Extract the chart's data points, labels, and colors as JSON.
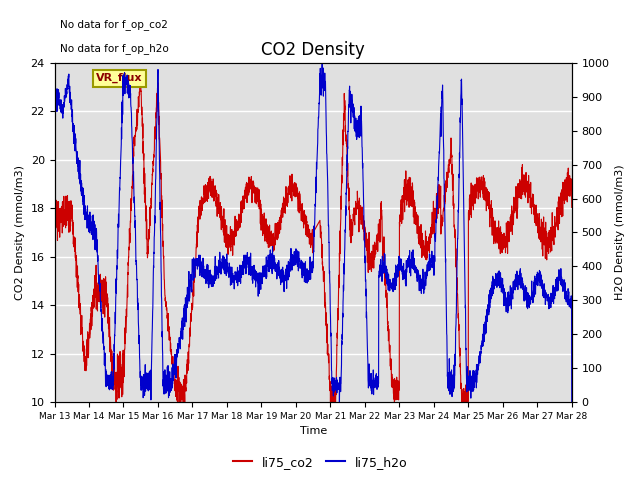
{
  "title": "CO2 Density",
  "xlabel": "Time",
  "ylabel_left": "CO2 Density (mmol/m3)",
  "ylabel_right": "H2O Density (mmol/m3)",
  "annotations": [
    "No data for f_op_co2",
    "No data for f_op_h2o"
  ],
  "vr_flux_label": "VR_flux",
  "legend_co2": "li75_co2",
  "legend_h2o": "li75_h2o",
  "color_co2": "#cc0000",
  "color_h2o": "#0000cc",
  "ylim_left": [
    10,
    24
  ],
  "ylim_right": [
    0,
    1000
  ],
  "yticks_left": [
    10,
    12,
    14,
    16,
    18,
    20,
    22,
    24
  ],
  "yticks_right": [
    0,
    100,
    200,
    300,
    400,
    500,
    600,
    700,
    800,
    900,
    1000
  ],
  "xtick_labels": [
    "Mar 13",
    "Mar 14",
    "Mar 15",
    "Mar 16",
    "Mar 17",
    "Mar 18",
    "Mar 19",
    "Mar 20",
    "Mar 21",
    "Mar 22",
    "Mar 23",
    "Mar 24",
    "Mar 25",
    "Mar 26",
    "Mar 27",
    "Mar 28"
  ],
  "plot_bg_color": "#e0e0e0",
  "grid_color": "#ffffff",
  "linewidth": 0.8
}
